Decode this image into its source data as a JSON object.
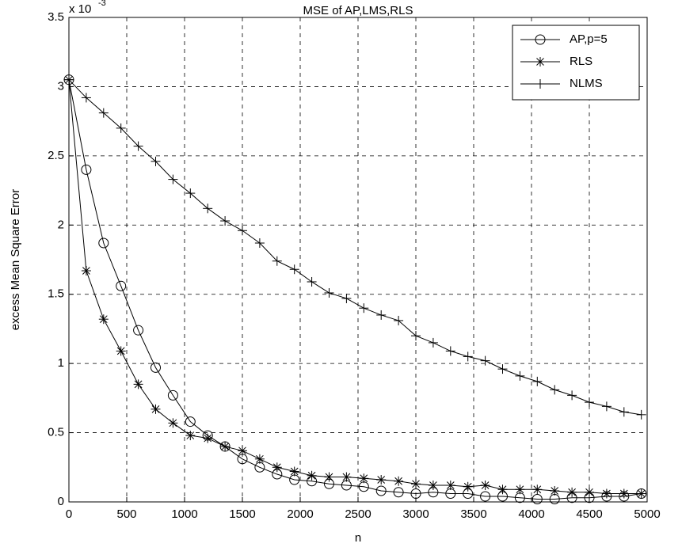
{
  "chart_data": {
    "type": "line",
    "title": "MSE of AP,LMS,RLS",
    "x_label": "n",
    "y_label": "excess Mean Square Error",
    "y_exponent_base": "x 10",
    "y_exponent": "-3",
    "x": [
      0,
      150,
      300,
      450,
      600,
      750,
      900,
      1050,
      1200,
      1350,
      1500,
      1650,
      1800,
      1950,
      2100,
      2250,
      2400,
      2550,
      2700,
      2850,
      3000,
      3150,
      3300,
      3450,
      3600,
      3750,
      3900,
      4050,
      4200,
      4350,
      4500,
      4650,
      4800,
      4950
    ],
    "series": [
      {
        "name": "AP,p=5",
        "color": "#000000",
        "marker": "o",
        "values": [
          3.05,
          2.4,
          1.87,
          1.56,
          1.24,
          0.97,
          0.77,
          0.58,
          0.48,
          0.4,
          0.31,
          0.25,
          0.2,
          0.16,
          0.15,
          0.13,
          0.12,
          0.11,
          0.08,
          0.07,
          0.06,
          0.07,
          0.06,
          0.06,
          0.04,
          0.04,
          0.03,
          0.02,
          0.02,
          0.03,
          0.03,
          0.04,
          0.04,
          0.06
        ]
      },
      {
        "name": "RLS",
        "color": "#000000",
        "marker": "*",
        "values": [
          3.05,
          1.67,
          1.32,
          1.09,
          0.85,
          0.67,
          0.57,
          0.48,
          0.46,
          0.4,
          0.37,
          0.31,
          0.25,
          0.22,
          0.19,
          0.18,
          0.18,
          0.17,
          0.16,
          0.15,
          0.13,
          0.12,
          0.12,
          0.11,
          0.12,
          0.09,
          0.09,
          0.09,
          0.08,
          0.07,
          0.07,
          0.06,
          0.06,
          0.06
        ]
      },
      {
        "name": "NLMS",
        "color": "#000000",
        "marker": "+",
        "values": [
          3.05,
          2.92,
          2.81,
          2.7,
          2.57,
          2.46,
          2.33,
          2.23,
          2.12,
          2.03,
          1.96,
          1.87,
          1.74,
          1.68,
          1.59,
          1.51,
          1.47,
          1.4,
          1.35,
          1.31,
          1.2,
          1.15,
          1.09,
          1.05,
          1.02,
          0.96,
          0.91,
          0.87,
          0.81,
          0.77,
          0.72,
          0.69,
          0.65,
          0.63
        ]
      }
    ],
    "xlim": [
      0,
      5000
    ],
    "xticks": [
      0,
      500,
      1000,
      1500,
      2000,
      2500,
      3000,
      3500,
      4000,
      4500,
      5000
    ],
    "ylim": [
      0,
      3.5
    ],
    "yticks": [
      0,
      0.5,
      1,
      1.5,
      2,
      2.5,
      3,
      3.5
    ],
    "grid": true,
    "legend": "top-right"
  }
}
